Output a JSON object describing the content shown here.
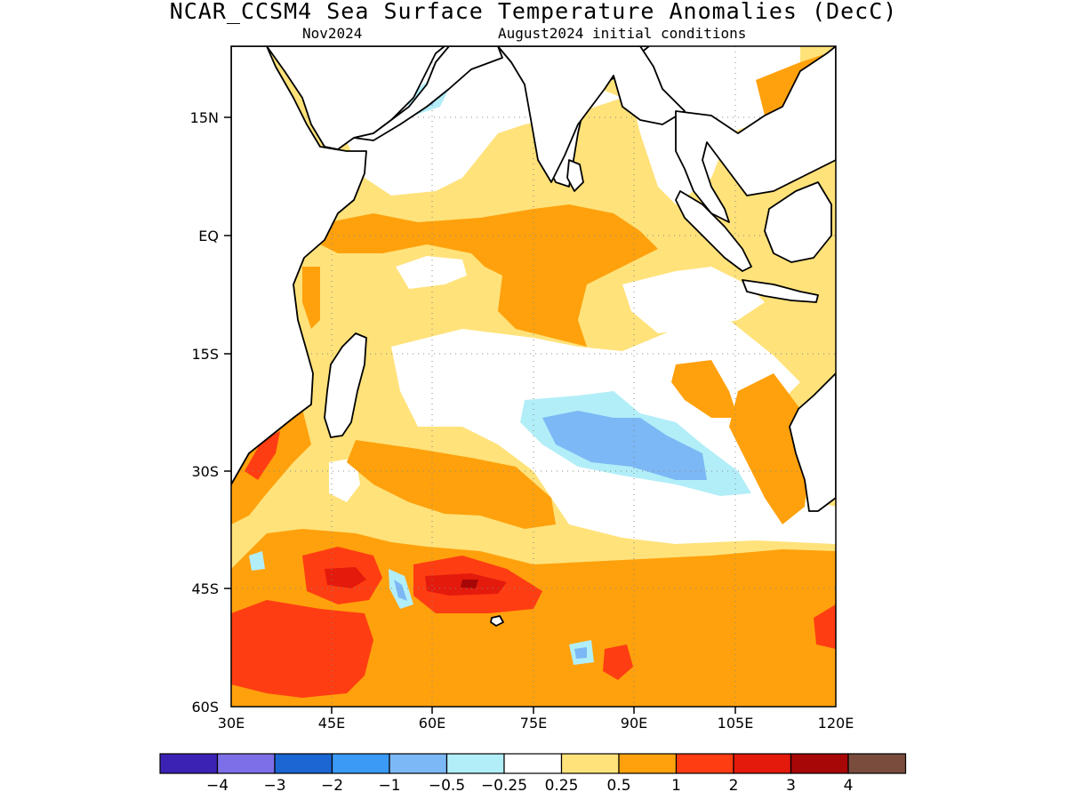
{
  "title": "NCAR_CCSM4 Sea Surface Temperature Anomalies (DecC)",
  "subtitle_left": "Nov2024",
  "subtitle_right": "August2024 initial conditions",
  "map": {
    "region": "Indian Ocean",
    "lon_range": [
      30,
      120
    ],
    "lat_range": [
      -60,
      24
    ],
    "lon_ticks": [
      "30E",
      "45E",
      "60E",
      "75E",
      "90E",
      "105E",
      "120E"
    ],
    "lat_ticks": [
      "15N",
      "EQ",
      "15S",
      "30S",
      "45S",
      "60S"
    ],
    "gridlines": "dotted"
  },
  "colorbar": {
    "colors": [
      "#3c22b4",
      "#7d6fe8",
      "#1b66d2",
      "#3b9af5",
      "#7cb8f5",
      "#b2eef8",
      "#ffffff",
      "#ffe27a",
      "#ffa10c",
      "#ff3d12",
      "#e31a0c",
      "#a70706",
      "#7a4c3d"
    ],
    "labels": [
      "−4",
      "−3",
      "−2",
      "−1",
      "−0.5",
      "−0.25",
      "0.25",
      "0.5",
      "1",
      "2",
      "3",
      "4"
    ]
  }
}
